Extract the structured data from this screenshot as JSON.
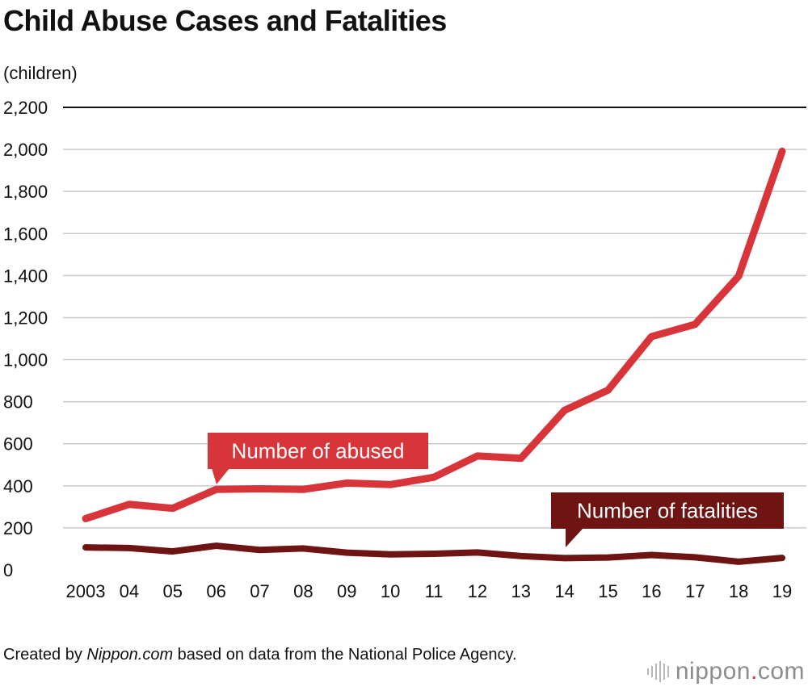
{
  "chart_data": {
    "type": "line",
    "title": "Child Abuse Cases and Fatalities",
    "ylabel": "(children)",
    "xlabel": "",
    "ylim": [
      0,
      2200
    ],
    "yticks": [
      0,
      200,
      400,
      600,
      800,
      1000,
      1200,
      1400,
      1600,
      1800,
      2000,
      2200
    ],
    "ytick_labels": [
      "0",
      "200",
      "400",
      "600",
      "800",
      "1,000",
      "1,200",
      "1,400",
      "1,600",
      "1,800",
      "2,000",
      "2,200"
    ],
    "categories": [
      "2003",
      "04",
      "05",
      "06",
      "07",
      "08",
      "09",
      "10",
      "11",
      "12",
      "13",
      "14",
      "15",
      "16",
      "17",
      "18",
      "19"
    ],
    "series": [
      {
        "name": "Number of abused",
        "color": "#d8353a",
        "values": [
          244,
          312,
          293,
          383,
          386,
          383,
          413,
          406,
          441,
          542,
          531,
          759,
          855,
          1110,
          1168,
          1397,
          1991
        ]
      },
      {
        "name": "Number of fatalities",
        "color": "#6e1412",
        "values": [
          107,
          104,
          88,
          115,
          95,
          102,
          82,
          74,
          77,
          83,
          66,
          56,
          59,
          71,
          60,
          39,
          57
        ]
      }
    ],
    "grid": true,
    "legend": "inline labels"
  },
  "source": {
    "prefix": "Created by ",
    "italic": "Nippon.com",
    "suffix": " based on data from the National Police Agency."
  },
  "logo": {
    "text_main": "nippon",
    "text_dot": ".",
    "text_tail": "com"
  }
}
